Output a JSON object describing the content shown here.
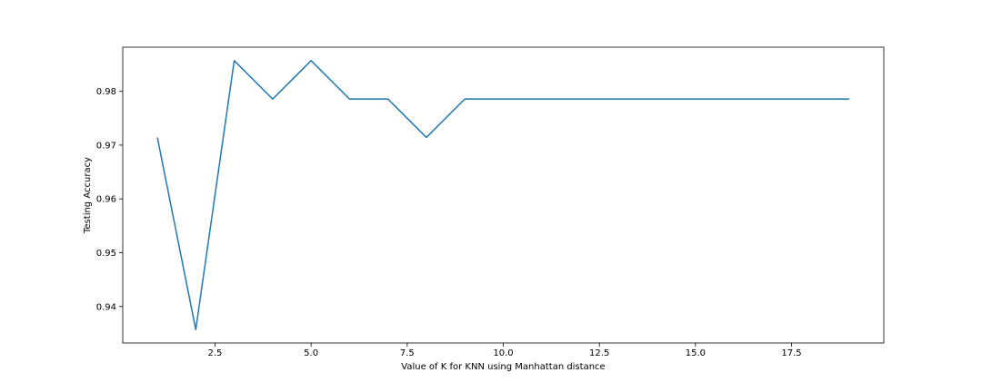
{
  "chart_data": {
    "type": "line",
    "title": "",
    "xlabel": "Value of K for KNN using Manhattan distance",
    "ylabel": "Testing Accuracy",
    "x": [
      1,
      2,
      3,
      4,
      5,
      6,
      7,
      8,
      9,
      10,
      11,
      12,
      13,
      14,
      15,
      16,
      17,
      18,
      19
    ],
    "series": [
      {
        "color": "#1f77b4",
        "values": [
          0.97143,
          0.93571,
          0.98571,
          0.97857,
          0.98571,
          0.97857,
          0.97857,
          0.97143,
          0.97857,
          0.97857,
          0.97857,
          0.97857,
          0.97857,
          0.97857,
          0.97857,
          0.97857,
          0.97857,
          0.97857,
          0.97857
        ]
      }
    ],
    "xlim": [
      0.1,
      19.9
    ],
    "ylim": [
      0.93321,
      0.98821
    ],
    "xticks": [
      2.5,
      5.0,
      7.5,
      10.0,
      12.5,
      15.0,
      17.5
    ],
    "xtick_labels": [
      "2.5",
      "5.0",
      "7.5",
      "10.0",
      "12.5",
      "15.0",
      "17.5"
    ],
    "yticks": [
      0.94,
      0.95,
      0.96,
      0.97,
      0.98
    ],
    "ytick_labels": [
      "0.94",
      "0.95",
      "0.96",
      "0.97",
      "0.98"
    ],
    "grid": false,
    "legend": "none"
  }
}
